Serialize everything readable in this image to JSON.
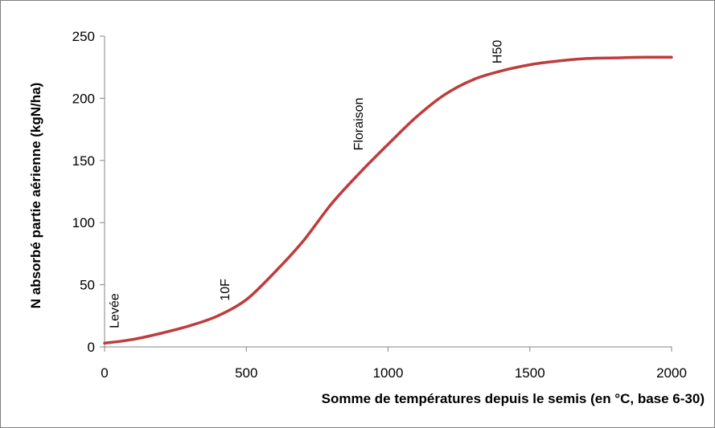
{
  "chart_data": {
    "type": "line",
    "title": "",
    "xlabel": "Somme de températures depuis le semis (en °C, base 6-30)",
    "ylabel": "N absorbé partie aérienne (kgN/ha)",
    "xlim": [
      0,
      2000
    ],
    "ylim": [
      0,
      250
    ],
    "x_ticks": [
      "0",
      "500",
      "1000",
      "1500",
      "2000"
    ],
    "y_ticks": [
      "0",
      "50",
      "100",
      "150",
      "200",
      "250"
    ],
    "grid": false,
    "legend": "none",
    "series": [
      {
        "color": "#be3c3c",
        "x": [
          0,
          100,
          200,
          300,
          400,
          500,
          600,
          700,
          800,
          900,
          1000,
          1100,
          1200,
          1300,
          1400,
          1500,
          1600,
          1700,
          1800,
          1900,
          2000
        ],
        "y": [
          3,
          6,
          11,
          17,
          25,
          38,
          60,
          85,
          115,
          140,
          163,
          185,
          203,
          215,
          222,
          227,
          230,
          232,
          232.5,
          233,
          233
        ]
      }
    ],
    "annotations": [
      {
        "text": "Levée",
        "x": 50,
        "y": 15
      },
      {
        "text": "10F",
        "x": 440,
        "y": 37
      },
      {
        "text": "Floraison",
        "x": 910,
        "y": 158
      },
      {
        "text": "H50",
        "x": 1400,
        "y": 228
      }
    ]
  }
}
